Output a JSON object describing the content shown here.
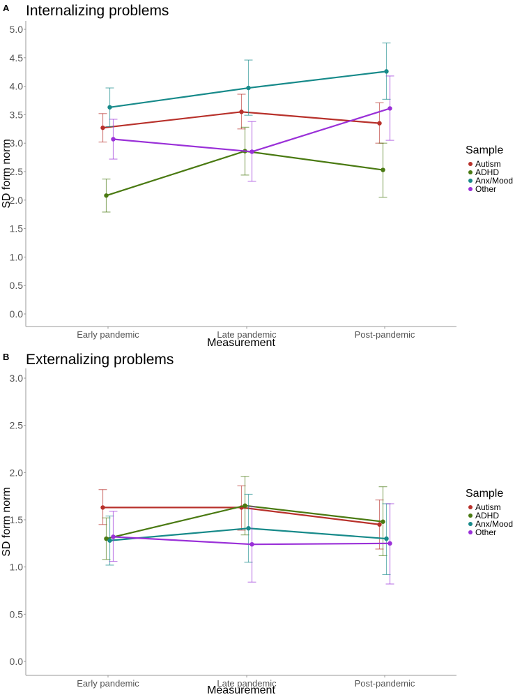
{
  "chart_data": [
    {
      "panel_label": "A",
      "type": "line",
      "title": "Internalizing problems",
      "xlabel": "Measurement",
      "ylabel": "SD form norm",
      "categories": [
        "Early pandemic",
        "Late pandemic",
        "Post-pandemic"
      ],
      "ylim": [
        0,
        5
      ],
      "yticks": [
        "0.0",
        "0.5",
        "1.0",
        "1.5",
        "2.0",
        "2.5",
        "3.0",
        "3.5",
        "4.0",
        "4.5",
        "5.0"
      ],
      "legend": {
        "title": "Sample",
        "placement": "right"
      },
      "series": [
        {
          "name": "Autism",
          "color": "#b8312b",
          "values": [
            3.27,
            3.55,
            3.35
          ],
          "lower": [
            3.02,
            3.25,
            3.0
          ],
          "upper": [
            3.52,
            3.86,
            3.71
          ]
        },
        {
          "name": "ADHD",
          "color": "#4a7a12",
          "values": [
            2.08,
            2.86,
            2.53
          ],
          "lower": [
            1.79,
            2.44,
            2.05
          ],
          "upper": [
            2.37,
            3.28,
            3.0
          ]
        },
        {
          "name": "Anx/Mood",
          "color": "#178a8a",
          "values": [
            3.63,
            3.97,
            4.26
          ],
          "lower": [
            3.29,
            3.49,
            3.77
          ],
          "upper": [
            3.97,
            4.46,
            4.76
          ]
        },
        {
          "name": "Other",
          "color": "#9a30d8",
          "values": [
            3.07,
            2.85,
            3.61
          ],
          "lower": [
            2.72,
            2.33,
            3.05
          ],
          "upper": [
            3.42,
            3.38,
            4.18
          ]
        }
      ]
    },
    {
      "panel_label": "B",
      "type": "line",
      "title": "Externalizing problems",
      "xlabel": "Measurement",
      "ylabel": "SD form norm",
      "categories": [
        "Early pandemic",
        "Late pandemic",
        "Post-pandemic"
      ],
      "ylim": [
        0,
        3
      ],
      "yticks": [
        "0.0",
        "0.5",
        "1.0",
        "1.5",
        "2.0",
        "2.5",
        "3.0"
      ],
      "legend": {
        "title": "Sample",
        "placement": "right"
      },
      "series": [
        {
          "name": "Autism",
          "color": "#b8312b",
          "values": [
            1.63,
            1.63,
            1.45
          ],
          "lower": [
            1.45,
            1.39,
            1.19
          ],
          "upper": [
            1.82,
            1.86,
            1.71
          ]
        },
        {
          "name": "ADHD",
          "color": "#4a7a12",
          "values": [
            1.3,
            1.65,
            1.48
          ],
          "lower": [
            1.08,
            1.34,
            1.12
          ],
          "upper": [
            1.52,
            1.96,
            1.85
          ]
        },
        {
          "name": "Anx/Mood",
          "color": "#178a8a",
          "values": [
            1.28,
            1.41,
            1.3
          ],
          "lower": [
            1.02,
            1.05,
            0.92
          ],
          "upper": [
            1.54,
            1.77,
            1.67
          ]
        },
        {
          "name": "Other",
          "color": "#9a30d8",
          "values": [
            1.32,
            1.24,
            1.25
          ],
          "lower": [
            1.06,
            0.84,
            0.82
          ],
          "upper": [
            1.59,
            1.64,
            1.67
          ]
        }
      ]
    }
  ]
}
